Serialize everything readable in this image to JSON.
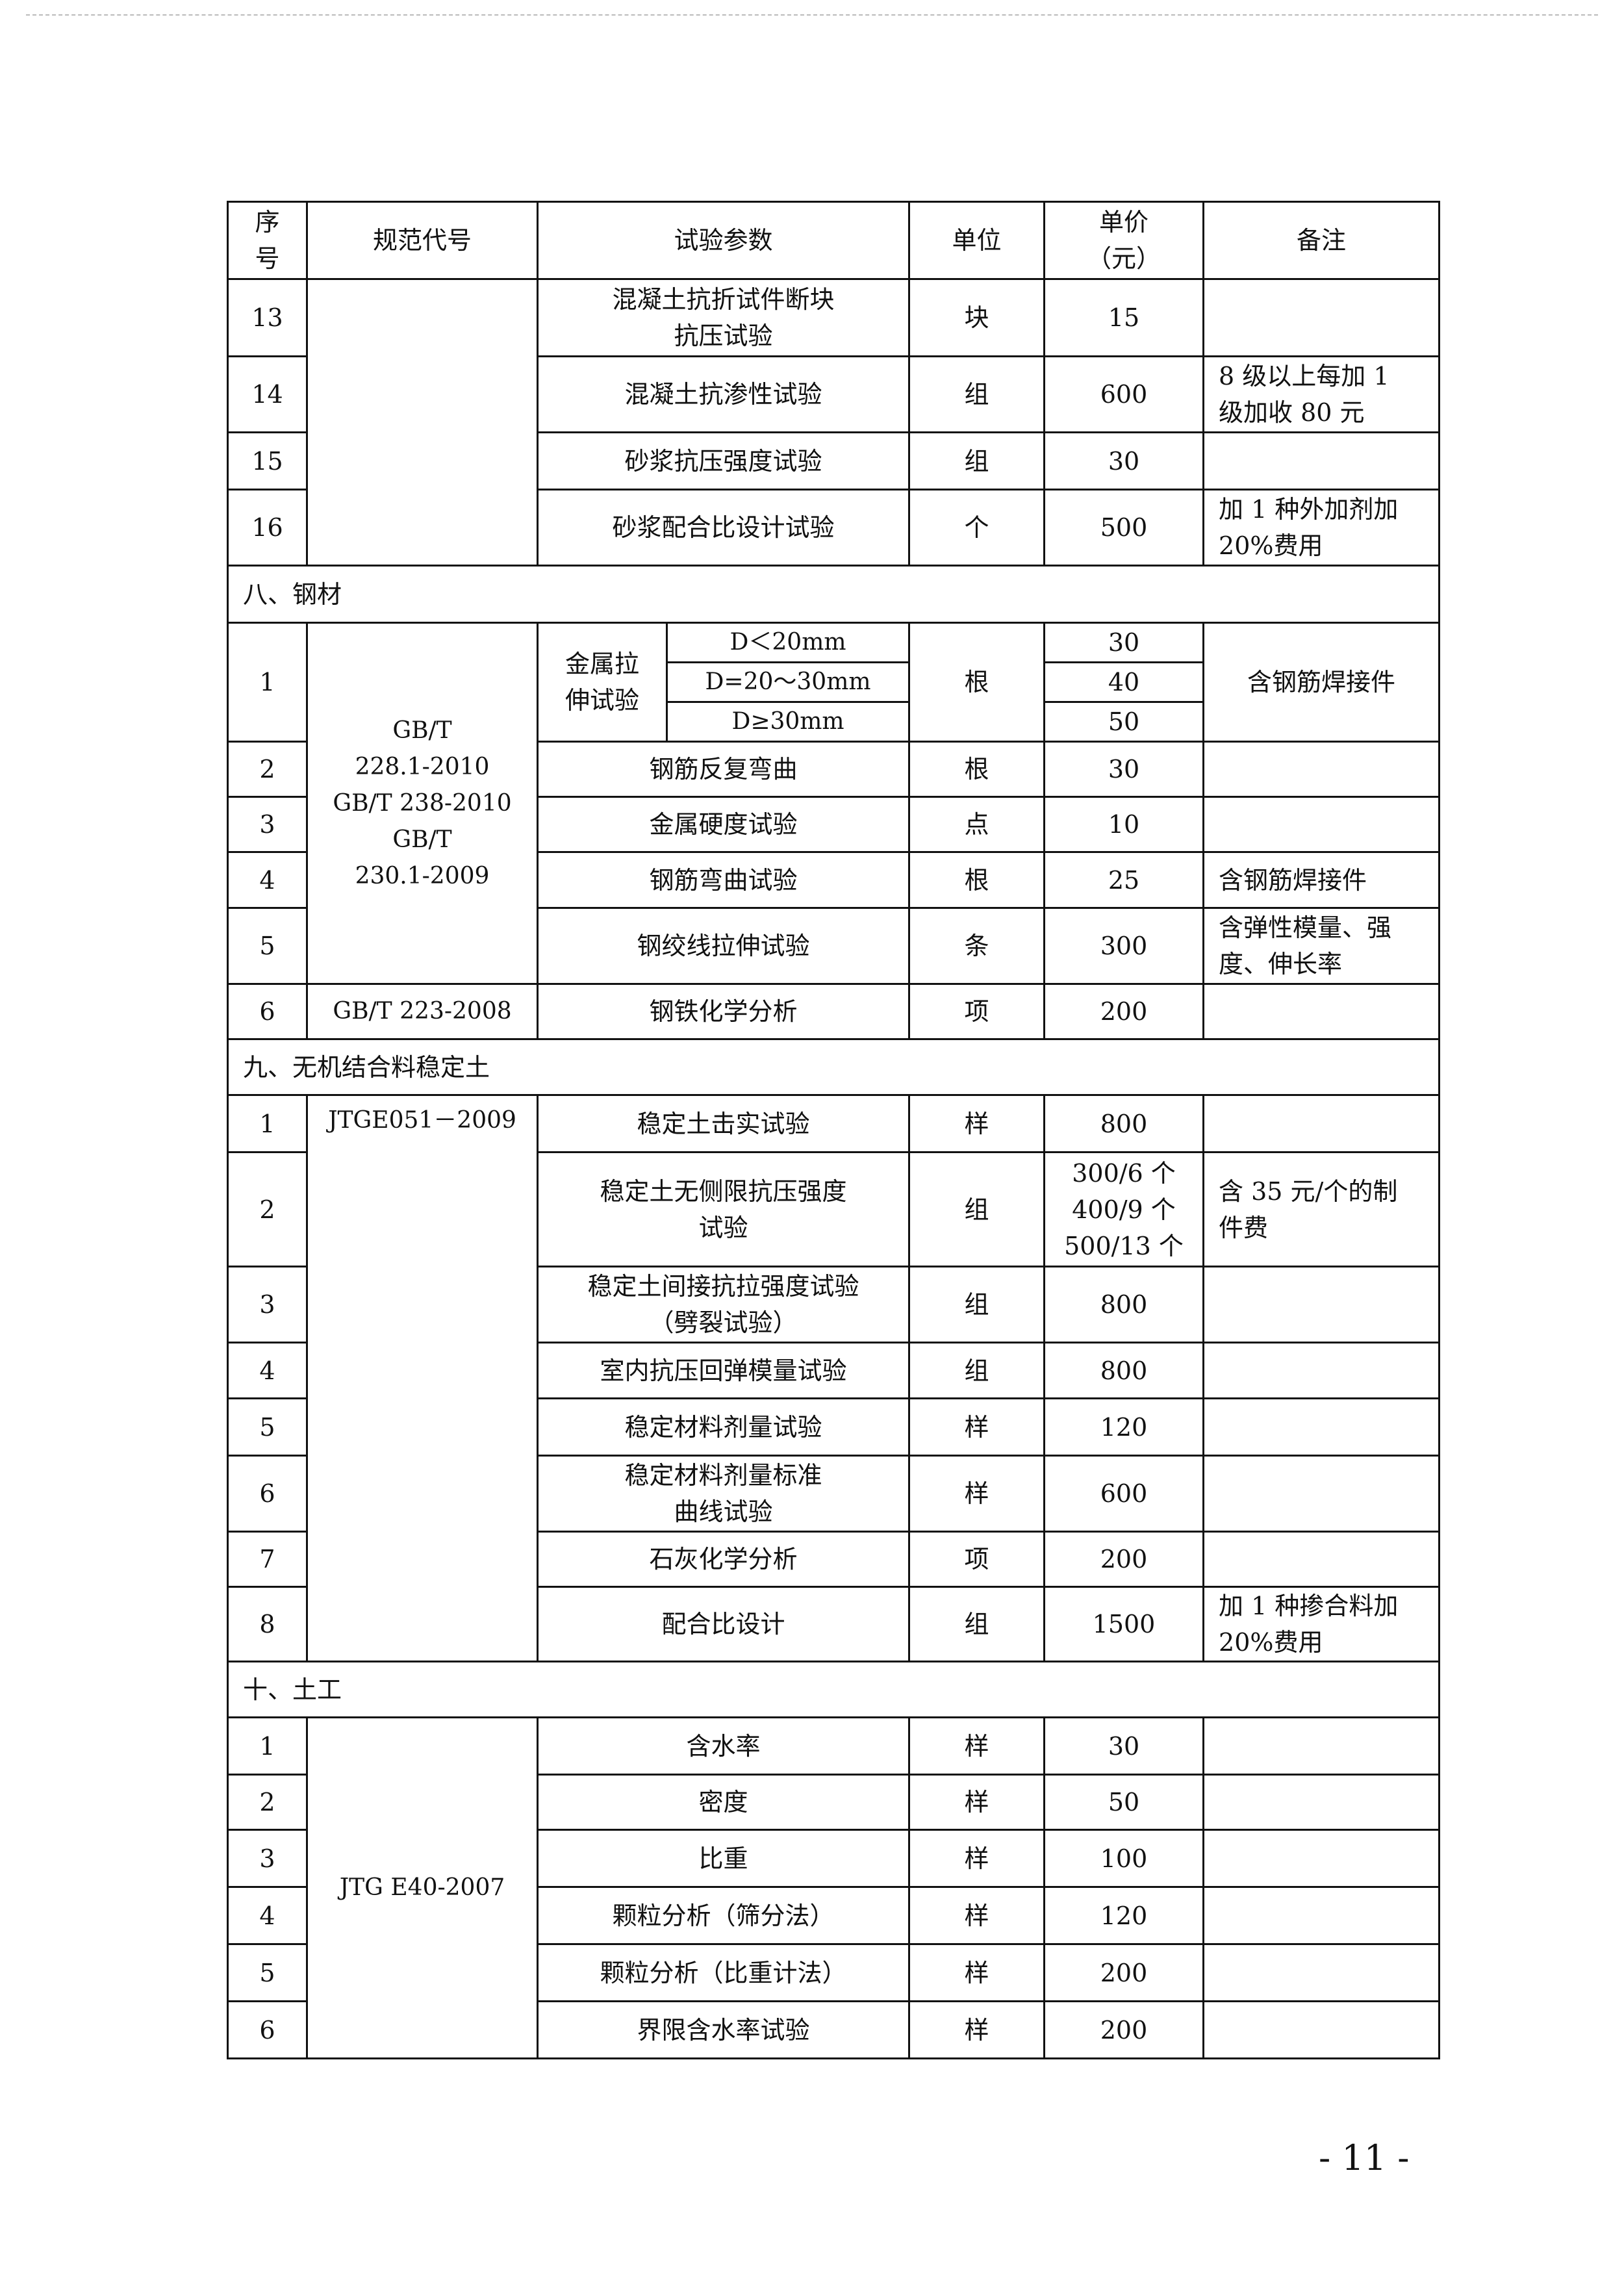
{
  "header": {
    "no": "序\n号",
    "code": "规范代号",
    "param": "试验参数",
    "unit": "单位",
    "price": "单价\n（元）",
    "note": "备注"
  },
  "concrete": {
    "code": "",
    "rows": [
      {
        "no": "13",
        "param": "混凝土抗折试件断块\n抗压试验",
        "unit": "块",
        "price": "15",
        "note": ""
      },
      {
        "no": "14",
        "param": "混凝土抗渗性试验",
        "unit": "组",
        "price": "600",
        "note": "8 级以上每加 1\n级加收 80 元"
      },
      {
        "no": "15",
        "param": "砂浆抗压强度试验",
        "unit": "组",
        "price": "30",
        "note": ""
      },
      {
        "no": "16",
        "param": "砂浆配合比设计试验",
        "unit": "个",
        "price": "500",
        "note": "加 1 种外加剂加\n20%费用"
      }
    ]
  },
  "steel": {
    "title": "八、钢材",
    "code": "GB/T\n228.1-2010\nGB/T 238-2010\nGB/T\n230.1-2009",
    "row1": {
      "no": "1",
      "param": "金属拉\n伸试验",
      "unit": "根",
      "note": "含钢筋焊接件",
      "subs": [
        {
          "cond": "D＜20mm",
          "price": "30"
        },
        {
          "cond": "D=20～30mm",
          "price": "40"
        },
        {
          "cond": "D≥30mm",
          "price": "50"
        }
      ]
    },
    "rows": [
      {
        "no": "2",
        "param": "钢筋反复弯曲",
        "unit": "根",
        "price": "30",
        "note": ""
      },
      {
        "no": "3",
        "param": "金属硬度试验",
        "unit": "点",
        "price": "10",
        "note": ""
      },
      {
        "no": "4",
        "param": "钢筋弯曲试验",
        "unit": "根",
        "price": "25",
        "note": "含钢筋焊接件"
      },
      {
        "no": "5",
        "param": "钢绞线拉伸试验",
        "unit": "条",
        "price": "300",
        "note": "含弹性模量、强\n度、伸长率"
      }
    ],
    "row6": {
      "no": "6",
      "code": "GB/T 223-2008",
      "param": "钢铁化学分析",
      "unit": "项",
      "price": "200",
      "note": ""
    }
  },
  "soil_stab": {
    "title": "九、无机结合料稳定土",
    "code": "JTGE051－2009",
    "rows": [
      {
        "no": "1",
        "param": "稳定土击实试验",
        "unit": "样",
        "price": "800",
        "note": ""
      },
      {
        "no": "2",
        "param": "稳定土无侧限抗压强度\n试验",
        "unit": "组",
        "price": "300/6 个\n400/9 个\n500/13 个",
        "note": "含 35 元/个的制\n件费"
      },
      {
        "no": "3",
        "param": "稳定土间接抗拉强度试验\n（劈裂试验）",
        "unit": "组",
        "price": "800",
        "note": ""
      },
      {
        "no": "4",
        "param": "室内抗压回弹模量试验",
        "unit": "组",
        "price": "800",
        "note": ""
      },
      {
        "no": "5",
        "param": "稳定材料剂量试验",
        "unit": "样",
        "price": "120",
        "note": ""
      },
      {
        "no": "6",
        "param": "稳定材料剂量标准\n曲线试验",
        "unit": "样",
        "price": "600",
        "note": ""
      },
      {
        "no": "7",
        "param": "石灰化学分析",
        "unit": "项",
        "price": "200",
        "note": ""
      },
      {
        "no": "8",
        "param": "配合比设计",
        "unit": "组",
        "price": "1500",
        "note": "加 1 种掺合料加\n20%费用"
      }
    ]
  },
  "geotech": {
    "title": "十、土工",
    "code": "JTG E40-2007",
    "rows": [
      {
        "no": "1",
        "param": "含水率",
        "unit": "样",
        "price": "30",
        "note": ""
      },
      {
        "no": "2",
        "param": "密度",
        "unit": "样",
        "price": "50",
        "note": ""
      },
      {
        "no": "3",
        "param": "比重",
        "unit": "样",
        "price": "100",
        "note": ""
      },
      {
        "no": "4",
        "param": "颗粒分析（筛分法）",
        "unit": "样",
        "price": "120",
        "note": ""
      },
      {
        "no": "5",
        "param": "颗粒分析（比重计法）",
        "unit": "样",
        "price": "200",
        "note": ""
      },
      {
        "no": "6",
        "param": "界限含水率试验",
        "unit": "样",
        "price": "200",
        "note": ""
      }
    ]
  },
  "page_number": "- 11 -"
}
